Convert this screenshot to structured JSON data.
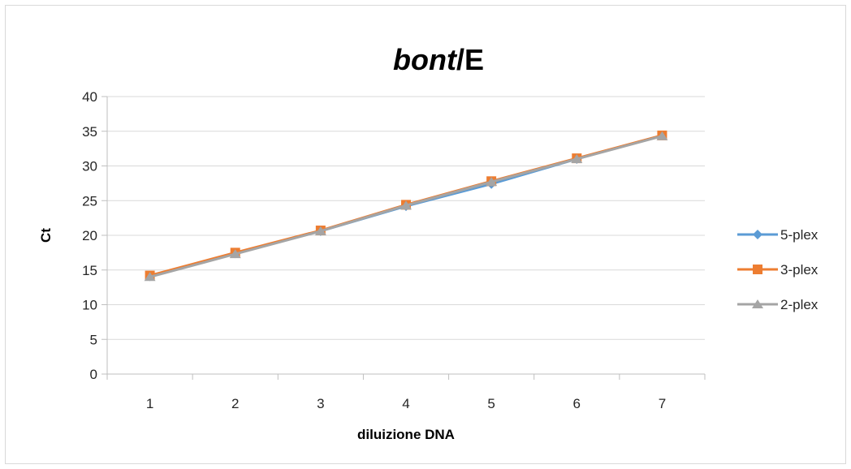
{
  "chart_data": {
    "type": "line",
    "title_italic": "bont",
    "title_rest": "/E",
    "xlabel": "diluizione DNA",
    "ylabel": "Ct",
    "categories": [
      "1",
      "2",
      "3",
      "4",
      "5",
      "6",
      "7"
    ],
    "ylim": [
      0,
      40
    ],
    "yticks": [
      "0",
      "5",
      "10",
      "15",
      "20",
      "25",
      "30",
      "35",
      "40"
    ],
    "grid": true,
    "legend_position": "right",
    "series": [
      {
        "name": "5-plex",
        "color": "#5B9BD5",
        "marker": "diamond",
        "values": [
          14.1,
          17.4,
          20.6,
          24.2,
          27.4,
          31.0,
          34.4
        ]
      },
      {
        "name": "3-plex",
        "color": "#ED7D31",
        "marker": "square",
        "values": [
          14.2,
          17.5,
          20.7,
          24.4,
          27.8,
          31.1,
          34.4
        ]
      },
      {
        "name": "2-plex",
        "color": "#A5A5A5",
        "marker": "triangle",
        "values": [
          14.0,
          17.3,
          20.6,
          24.3,
          27.7,
          31.0,
          34.3
        ]
      }
    ]
  }
}
